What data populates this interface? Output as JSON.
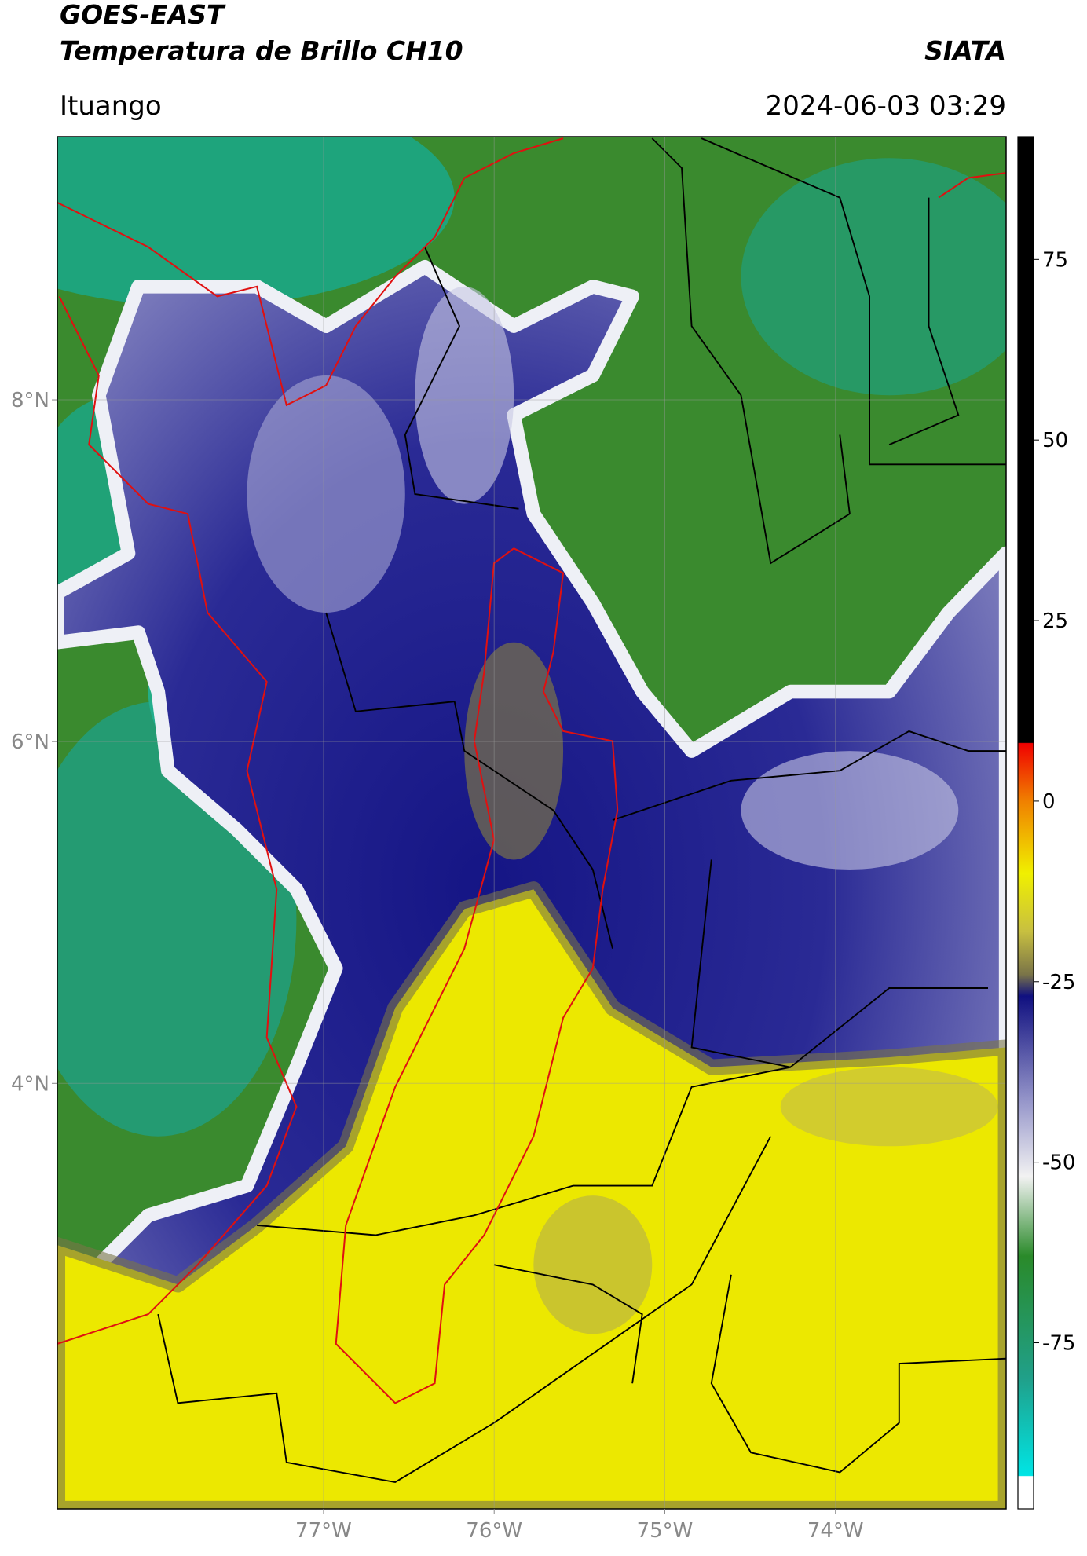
{
  "header": {
    "title": "GOES-EAST",
    "subtitle": "Temperatura de Brillo CH10",
    "source": "SIATA",
    "location": "Ituango",
    "datetime": "2024-06-03 03:29"
  },
  "map": {
    "xlim": [
      -78.56,
      -73.0
    ],
    "ylim": [
      1.51,
      9.54
    ],
    "xticks": [
      {
        "value": -77,
        "label": "77°W"
      },
      {
        "value": -76,
        "label": "76°W"
      },
      {
        "value": -75,
        "label": "75°W"
      },
      {
        "value": -74,
        "label": "74°W"
      }
    ],
    "yticks": [
      {
        "value": 8,
        "label": "8°N"
      },
      {
        "value": 6,
        "label": "6°N"
      },
      {
        "value": 4,
        "label": "4°N"
      }
    ],
    "grid": true
  },
  "colorbar": {
    "lim": [
      -98,
      92
    ],
    "ticks": [
      75,
      50,
      25,
      0,
      -25,
      -50,
      -75
    ],
    "stops": [
      {
        "value": -98,
        "color": "#ffffff"
      },
      {
        "value": -93.5,
        "color": "#ffffff"
      },
      {
        "value": -93.4,
        "color": "#00e5e5"
      },
      {
        "value": -80,
        "color": "#20a08a"
      },
      {
        "value": -63,
        "color": "#2a8a2a"
      },
      {
        "value": -52,
        "color": "#f2f2f2"
      },
      {
        "value": -42,
        "color": "#9a9acc"
      },
      {
        "value": -27,
        "color": "#101080"
      },
      {
        "value": -24,
        "color": "#7a7448"
      },
      {
        "value": -18,
        "color": "#c8c040"
      },
      {
        "value": -10,
        "color": "#f0f000"
      },
      {
        "value": 0,
        "color": "#f08000"
      },
      {
        "value": 8,
        "color": "#f00000"
      },
      {
        "value": 8.1,
        "color": "#000000"
      },
      {
        "value": 92,
        "color": "#000000"
      }
    ]
  }
}
